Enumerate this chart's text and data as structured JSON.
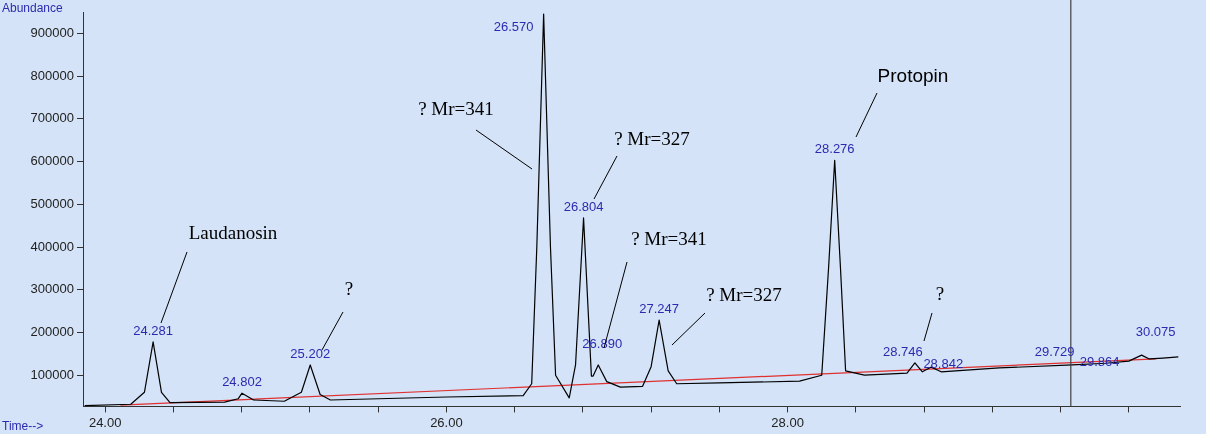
{
  "chart_data": {
    "type": "line",
    "xlabel": "Time-->",
    "ylabel": "Abundance",
    "xlim": [
      23.87,
      30.3
    ],
    "ylim": [
      27000,
      950000
    ],
    "xticks": [
      {
        "value": 24,
        "label": "24.00"
      },
      {
        "value": 24.4,
        "label": null
      },
      {
        "value": 24.8,
        "label": null
      },
      {
        "value": 25.2,
        "label": null
      },
      {
        "value": 25.6,
        "label": null
      },
      {
        "value": 26,
        "label": "26.00"
      },
      {
        "value": 26.4,
        "label": null
      },
      {
        "value": 26.8,
        "label": null
      },
      {
        "value": 27.2,
        "label": null
      },
      {
        "value": 27.6,
        "label": null
      },
      {
        "value": 28,
        "label": "28.00"
      },
      {
        "value": 28.4,
        "label": null
      },
      {
        "value": 28.8,
        "label": null
      },
      {
        "value": 29.2,
        "label": null
      },
      {
        "value": 29.6,
        "label": null
      },
      {
        "value": 30,
        "label": null
      }
    ],
    "yticks": [
      100000,
      200000,
      300000,
      400000,
      500000,
      600000,
      700000,
      800000,
      900000
    ],
    "grid": false,
    "legend": false,
    "marker": "none",
    "series": [
      {
        "color": "#000000",
        "x": [
          23.88,
          24.15,
          24.23,
          24.281,
          24.33,
          24.38,
          24.7,
          24.78,
          24.802,
          24.87,
          25.05,
          25.15,
          25.202,
          25.26,
          25.32,
          26.0,
          26.45,
          26.5,
          26.53,
          26.57,
          26.61,
          26.64,
          26.72,
          26.757,
          26.804,
          26.85,
          26.86,
          26.89,
          26.94,
          27.02,
          27.15,
          27.2,
          27.247,
          27.3,
          27.35,
          27.6,
          28.07,
          28.2,
          28.24,
          28.276,
          28.31,
          28.34,
          28.45,
          28.7,
          28.746,
          28.79,
          28.842,
          28.9,
          29.24,
          29.67,
          29.864,
          30.0,
          30.075,
          30.12,
          30.2,
          30.29
        ],
        "values": [
          29000,
          32000,
          60000,
          178000,
          60000,
          36000,
          37000,
          45000,
          58000,
          42000,
          39000,
          60000,
          124000,
          55000,
          42000,
          49000,
          52000,
          80000,
          400000,
          945000,
          400000,
          100000,
          47000,
          124000,
          468000,
          98000,
          98000,
          124000,
          85000,
          72000,
          74000,
          120000,
          229000,
          110000,
          80000,
          82000,
          86000,
          100000,
          350000,
          603000,
          350000,
          110000,
          100000,
          105000,
          129000,
          108000,
          119000,
          108000,
          117000,
          124000,
          128000,
          133000,
          147000,
          138000,
          140000,
          143000
        ]
      },
      {
        "color": "#e03030",
        "x": [
          24.09,
          30.16
        ],
        "values": [
          30000,
          138000
        ]
      }
    ],
    "ref_lines": [
      {
        "axis": "x",
        "value": 29.66,
        "color": "#404040"
      }
    ],
    "annotations": [
      {
        "text": "24.281",
        "x": 24.281,
        "y": 178000
      },
      {
        "text": "24.802",
        "x": 24.802,
        "y": 58000
      },
      {
        "text": "25.202",
        "x": 25.202,
        "y": 124000
      },
      {
        "text": "26.570",
        "x": 26.57,
        "y": 945000
      },
      {
        "text": "26.804",
        "x": 26.804,
        "y": 468000
      },
      {
        "text": "26.890",
        "x": 26.89,
        "y": 124000
      },
      {
        "text": "27.247",
        "x": 27.247,
        "y": 229000
      },
      {
        "text": "28.276",
        "x": 28.276,
        "y": 603000
      },
      {
        "text": "28.746",
        "x": 28.746,
        "y": 129000
      },
      {
        "text": "28.842",
        "x": 28.842,
        "y": 119000
      },
      {
        "text": "29.729",
        "x": 29.729,
        "y": 125000
      },
      {
        "text": "29.864",
        "x": 29.864,
        "y": 128000
      },
      {
        "text": "30.075",
        "x": 30.075,
        "y": 147000
      },
      "Laudanosin",
      "?",
      "? Mr=341",
      "? Mr=327",
      "? Mr=341",
      "? Mr=327",
      "Protopin",
      "?"
    ]
  }
}
